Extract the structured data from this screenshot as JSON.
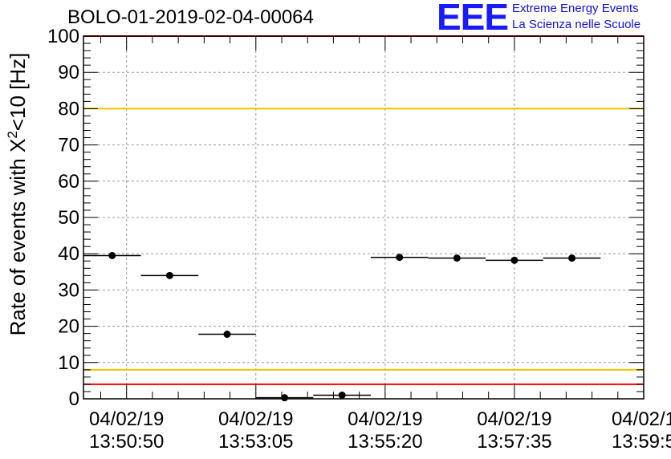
{
  "header": {
    "title": "BOLO-01-2019-02-04-00064",
    "logo_mark": "EEE",
    "logo_line1": "Extreme Energy Events",
    "logo_line2": "La Scienza nelle Scuole"
  },
  "colors": {
    "red_line": "#ff0000",
    "yellow_line": "#f2c400",
    "grid": "#9a9a9a",
    "marker": "#000000",
    "logo": "#1a1aff"
  },
  "chart_data": {
    "type": "scatter",
    "ylabel": "Rate of events with X²<10 [Hz]",
    "ylim": [
      0,
      100
    ],
    "xlim": [
      "13:50:05",
      "13:59:50"
    ],
    "y_ticks": [
      0,
      10,
      20,
      30,
      40,
      50,
      60,
      70,
      80,
      90,
      100
    ],
    "x_tick_labels": [
      {
        "date": "04/02/19",
        "time": "13:50:50"
      },
      {
        "date": "04/02/19",
        "time": "13:53:05"
      },
      {
        "date": "04/02/19",
        "time": "13:55:20"
      },
      {
        "date": "04/02/19",
        "time": "13:57:35"
      },
      {
        "date": "04/02/1",
        "time": "13:59:5"
      }
    ],
    "grid": true,
    "reference_lines": [
      {
        "y": 80,
        "color": "yellow"
      },
      {
        "y": 8,
        "color": "yellow"
      },
      {
        "y": 4,
        "color": "red"
      },
      {
        "y": 100,
        "color": "red"
      }
    ],
    "points": [
      {
        "x_start": "13:50:05",
        "x_end": "13:51:05",
        "y": 39.5
      },
      {
        "x_start": "13:51:05",
        "x_end": "13:52:05",
        "y": 34.0
      },
      {
        "x_start": "13:52:05",
        "x_end": "13:53:05",
        "y": 17.8
      },
      {
        "x_start": "13:53:05",
        "x_end": "13:54:05",
        "y": 0.3
      },
      {
        "x_start": "13:54:05",
        "x_end": "13:55:05",
        "y": 1.0
      },
      {
        "x_start": "13:55:05",
        "x_end": "13:56:05",
        "y": 39.0
      },
      {
        "x_start": "13:56:05",
        "x_end": "13:57:05",
        "y": 38.8
      },
      {
        "x_start": "13:57:05",
        "x_end": "13:58:05",
        "y": 38.2
      },
      {
        "x_start": "13:58:05",
        "x_end": "13:59:05",
        "y": 38.8
      }
    ]
  }
}
